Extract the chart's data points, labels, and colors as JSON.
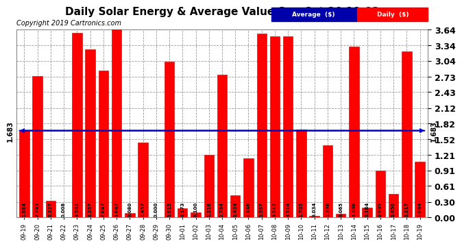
{
  "title": "Daily Solar Energy & Average Value Sun Oct 20 18:02",
  "copyright": "Copyright 2019 Cartronics.com",
  "average_label": "1.683",
  "average_value": 1.683,
  "categories": [
    "09-19",
    "09-20",
    "09-21",
    "09-22",
    "09-23",
    "09-24",
    "09-25",
    "09-26",
    "09-27",
    "09-28",
    "09-29",
    "09-30",
    "10-01",
    "10-02",
    "10-03",
    "10-04",
    "10-05",
    "10-06",
    "10-07",
    "10-08",
    "10-09",
    "10-10",
    "10-11",
    "10-12",
    "10-13",
    "10-14",
    "10-15",
    "10-16",
    "10-17",
    "10-18",
    "10-19"
  ],
  "values": [
    1.684,
    2.743,
    0.327,
    0.008,
    3.581,
    3.267,
    2.847,
    3.642,
    0.08,
    1.457,
    0.0,
    3.015,
    0.173,
    0.1,
    1.216,
    2.764,
    0.434,
    1.146,
    3.567,
    3.512,
    3.514,
    1.705,
    0.034,
    1.398,
    0.065,
    3.308,
    0.184,
    0.905,
    0.45,
    3.217,
    1.084
  ],
  "bar_color": "#FF0000",
  "bar_edge_color": "#BB0000",
  "avg_line_color": "#0000CC",
  "background_color": "#FFFFFF",
  "plot_bg_color": "#FFFFFF",
  "grid_color": "#999999",
  "yticks": [
    0.0,
    0.3,
    0.61,
    0.91,
    1.21,
    1.52,
    1.82,
    2.12,
    2.43,
    2.73,
    3.04,
    3.34,
    3.64
  ],
  "ylim": [
    0.0,
    3.64
  ],
  "title_fontsize": 11,
  "copyright_fontsize": 7,
  "bar_label_fontsize": 5,
  "ytick_fontsize": 9,
  "xtick_fontsize": 6,
  "avg_label_fontsize": 7
}
